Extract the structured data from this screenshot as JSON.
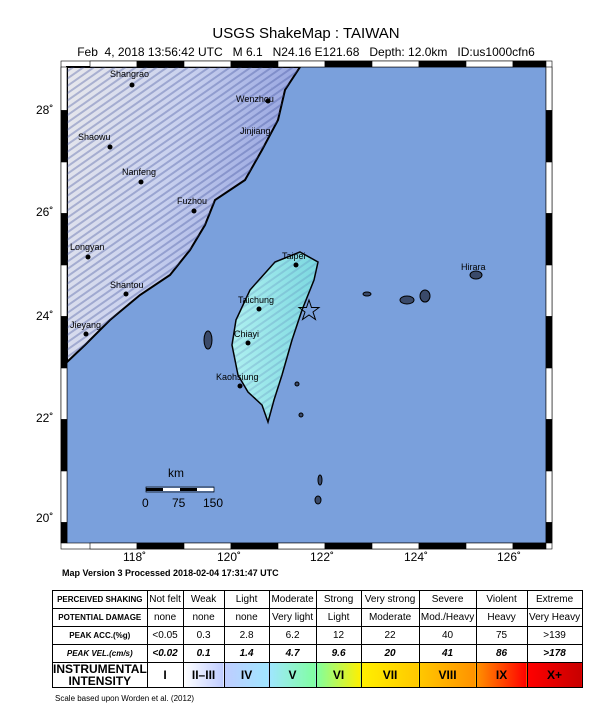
{
  "title": "USGS ShakeMap : TAIWAN",
  "subtitle": "Feb  4, 2018 13:56:42 UTC   M 6.1   N24.16 E121.68   Depth: 12.0km   ID:us1000cfn6",
  "map": {
    "ocean_color": "#7aa0dc",
    "lat_labels": [
      "28˚",
      "26˚",
      "24˚",
      "22˚",
      "20˚"
    ],
    "lon_labels": [
      "118˚",
      "120˚",
      "122˚",
      "124˚",
      "126˚"
    ],
    "cities": [
      "Shangrao",
      "Wenzhou",
      "Jinjiang",
      "Shaowu",
      "Nanfeng",
      "Fuzhou",
      "Longyan",
      "Shantou",
      "Jieyang",
      "Taipei",
      "Taichung",
      "Chiayi",
      "Kaohsiung",
      "Hirara"
    ],
    "epicenter_icon": "star-icon",
    "scale": {
      "unit": "km",
      "ticks": [
        "0",
        "75",
        "150"
      ]
    }
  },
  "version": "Map Version 3 Processed 2018-02-04 17:31:47 UTC",
  "legend": {
    "rows": [
      {
        "header": "PERCEIVED SHAKING",
        "cells": [
          "Not felt",
          "Weak",
          "Light",
          "Moderate",
          "Strong",
          "Very strong",
          "Severe",
          "Violent",
          "Extreme"
        ]
      },
      {
        "header": "POTENTIAL DAMAGE",
        "cells": [
          "none",
          "none",
          "none",
          "Very light",
          "Light",
          "Moderate",
          "Mod./Heavy",
          "Heavy",
          "Very Heavy"
        ]
      },
      {
        "header": "PEAK ACC.(%g)",
        "cells": [
          "<0.05",
          "0.3",
          "2.8",
          "6.2",
          "12",
          "22",
          "40",
          "75",
          ">139"
        ]
      },
      {
        "header": "PEAK VEL.(cm/s)",
        "cells": [
          "<0.02",
          "0.1",
          "1.4",
          "4.7",
          "9.6",
          "20",
          "41",
          "86",
          ">178"
        ]
      },
      {
        "header": "INSTRUMENTAL INTENSITY",
        "cells": [
          "I",
          "II–III",
          "IV",
          "V",
          "VI",
          "VII",
          "VIII",
          "IX",
          "X+"
        ]
      }
    ],
    "intensity_colors": [
      "#ffffff",
      "#bfccff",
      "#a0e6ff",
      "#80ffa0",
      "#fff000",
      "#ffc800",
      "#ff9100",
      "#ff0000",
      "#c80000"
    ],
    "credit": "Scale based upon Worden et al. (2012)"
  }
}
